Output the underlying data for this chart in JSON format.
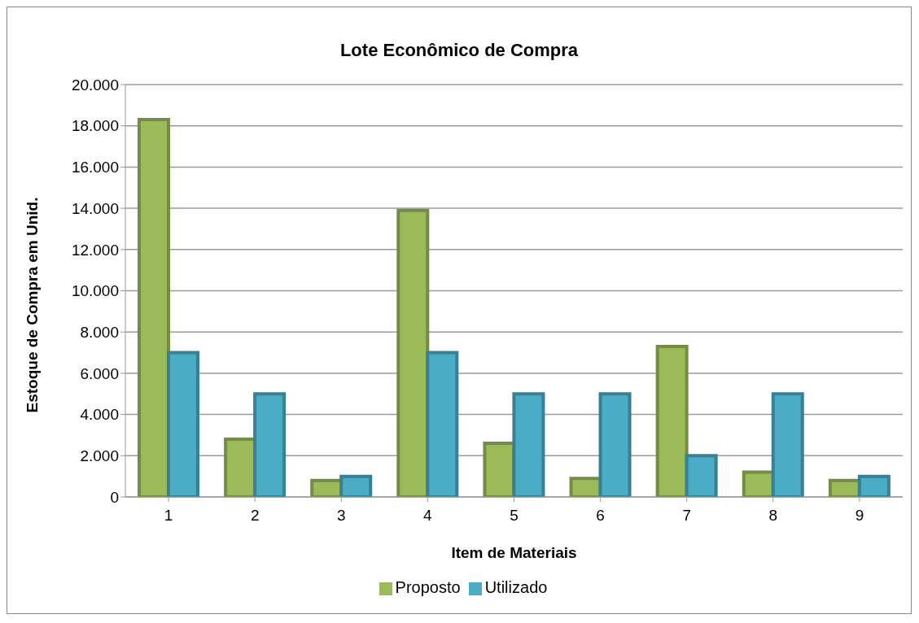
{
  "chart_data": {
    "type": "bar",
    "title": "Lote Econômico de Compra",
    "xlabel": "Item de Materiais",
    "ylabel": "Estoque de Compra em Unid.",
    "categories": [
      "1",
      "2",
      "3",
      "4",
      "5",
      "6",
      "7",
      "8",
      "9"
    ],
    "series": [
      {
        "name": "Proposto",
        "color": "#9bbb59",
        "values": [
          18300,
          2800,
          800,
          13900,
          2600,
          900,
          7300,
          1200,
          800
        ]
      },
      {
        "name": "Utilizado",
        "color": "#4bacc6",
        "values": [
          7000,
          5000,
          1000,
          7000,
          5000,
          5000,
          2000,
          5000,
          1000
        ]
      }
    ],
    "ylim": [
      0,
      20000
    ],
    "yticks": [
      {
        "value": 0,
        "label": "0"
      },
      {
        "value": 2000,
        "label": "2.000"
      },
      {
        "value": 4000,
        "label": "4.000"
      },
      {
        "value": 6000,
        "label": "6.000"
      },
      {
        "value": 8000,
        "label": "8.000"
      },
      {
        "value": 10000,
        "label": "10.000"
      },
      {
        "value": 12000,
        "label": "12.000"
      },
      {
        "value": 14000,
        "label": "14.000"
      },
      {
        "value": 16000,
        "label": "16.000"
      },
      {
        "value": 18000,
        "label": "18.000"
      },
      {
        "value": 20000,
        "label": "20.000"
      }
    ],
    "grid": "y",
    "legend": "bottom"
  }
}
